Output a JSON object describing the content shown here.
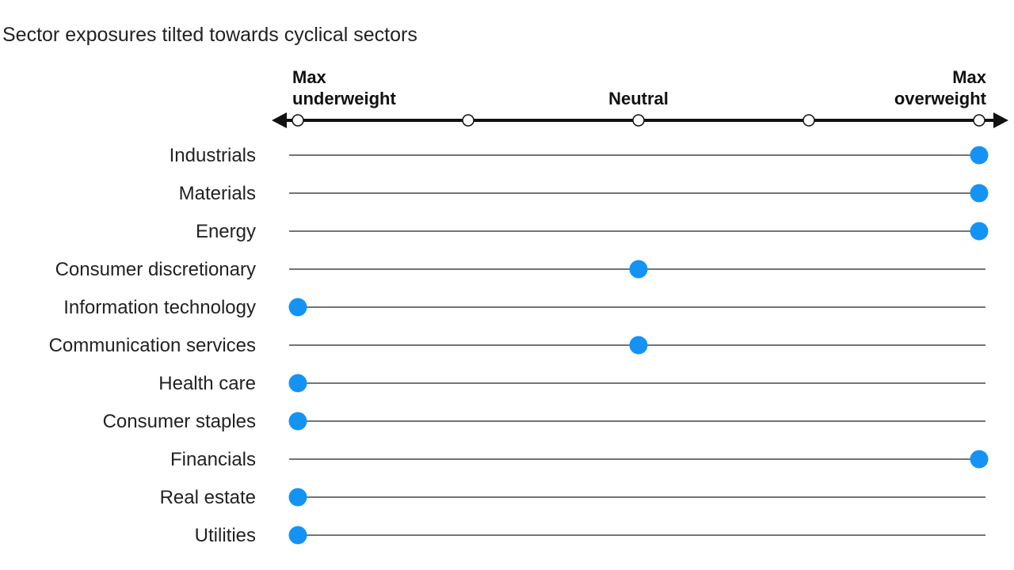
{
  "chart_data": {
    "type": "scatter",
    "title": "Sector exposures tilted towards cyclical sectors",
    "scale": {
      "min": 0,
      "max": 4,
      "ticks": [
        0,
        1,
        2,
        3,
        4
      ],
      "labels": [
        {
          "value": 0,
          "lines": [
            "Max",
            "underweight"
          ],
          "align": "start"
        },
        {
          "value": 2,
          "lines": [
            "Neutral"
          ],
          "align": "middle"
        },
        {
          "value": 4,
          "lines": [
            "Max",
            "overweight"
          ],
          "align": "end"
        }
      ]
    },
    "categories": [
      "Industrials",
      "Materials",
      "Energy",
      "Consumer discretionary",
      "Information technology",
      "Communication services",
      "Health care",
      "Consumer staples",
      "Financials",
      "Real estate",
      "Utilities"
    ],
    "values": [
      4,
      4,
      4,
      2,
      0,
      2,
      0,
      0,
      4,
      0,
      0
    ],
    "marker_color": "#1493f5",
    "axis_color": "#111111",
    "line_color": "#222222"
  }
}
